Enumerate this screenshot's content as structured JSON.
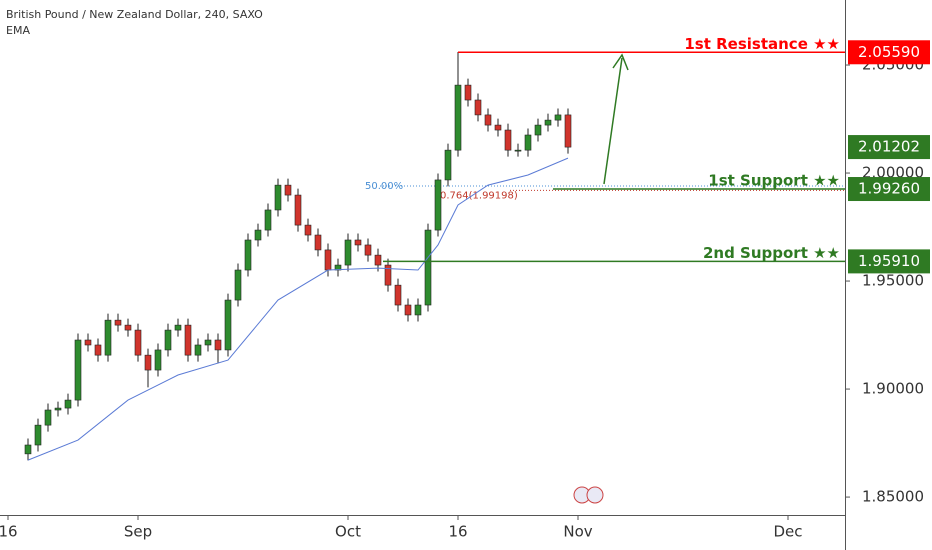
{
  "chart_data": {
    "type": "candlestick",
    "title": "British Pound / New Zealand Dollar, 240, SAXO",
    "indicator": "EMA",
    "x": [
      0,
      1,
      2,
      3,
      4,
      5,
      6,
      7,
      8,
      9,
      10,
      11,
      12,
      13,
      14,
      15,
      16,
      17,
      18,
      19,
      20,
      21,
      22,
      23,
      24,
      25,
      26,
      27,
      28,
      29,
      30,
      31,
      32,
      33,
      34,
      35,
      36,
      37,
      38,
      39,
      40,
      41,
      42,
      43,
      44,
      45,
      46,
      47,
      48,
      49,
      50,
      51,
      52,
      53,
      54
    ],
    "open": [
      1.87,
      1.8741,
      1.8833,
      1.8903,
      1.8912,
      1.8949,
      1.9227,
      1.9204,
      1.9157,
      1.9319,
      1.9296,
      1.9273,
      1.9157,
      1.9088,
      1.9181,
      1.9273,
      1.9296,
      1.9157,
      1.9204,
      1.9227,
      1.9181,
      1.9412,
      1.9551,
      1.969,
      1.9736,
      1.9829,
      1.9944,
      1.9898,
      1.9759,
      1.9713,
      1.9644,
      1.9551,
      1.9574,
      1.969,
      1.9667,
      1.962,
      1.9574,
      1.9481,
      1.9389,
      1.9343,
      1.9389,
      1.9736,
      1.9968,
      2.0106,
      2.0407,
      2.0338,
      2.0269,
      2.0222,
      2.0199,
      2.0106,
      2.0106,
      2.0176,
      2.0222,
      2.0245,
      2.0269
    ],
    "high": [
      1.8771,
      1.8863,
      1.8933,
      1.8942,
      1.8979,
      1.9257,
      1.9257,
      1.9234,
      1.9349,
      1.9349,
      1.9326,
      1.9303,
      1.9187,
      1.9211,
      1.9303,
      1.9326,
      1.9326,
      1.9234,
      1.9257,
      1.9257,
      1.9442,
      1.9581,
      1.972,
      1.9766,
      1.9859,
      1.9974,
      1.9974,
      1.9928,
      1.9789,
      1.9743,
      1.9674,
      1.9604,
      1.972,
      1.972,
      1.9697,
      1.965,
      1.9604,
      1.9511,
      1.9419,
      1.9419,
      1.9766,
      1.9998,
      2.0136,
      2.056,
      2.0437,
      2.0368,
      2.0299,
      2.0252,
      2.0229,
      2.0136,
      2.0206,
      2.0252,
      2.0275,
      2.0299,
      2.0299
    ],
    "low": [
      1.867,
      1.8711,
      1.8803,
      1.8873,
      1.8882,
      1.8919,
      1.9174,
      1.9127,
      1.9127,
      1.9266,
      1.9243,
      1.9127,
      1.9008,
      1.9058,
      1.9151,
      1.9243,
      1.9127,
      1.9127,
      1.9174,
      1.9121,
      1.9151,
      1.9382,
      1.9521,
      1.966,
      1.9706,
      1.9799,
      1.9868,
      1.9729,
      1.9683,
      1.9614,
      1.9521,
      1.9521,
      1.9544,
      1.9637,
      1.959,
      1.9544,
      1.9451,
      1.9359,
      1.9313,
      1.9313,
      1.9359,
      1.9706,
      1.9938,
      2.0076,
      2.0308,
      2.0239,
      2.0192,
      2.0169,
      2.0076,
      2.0076,
      2.0076,
      2.0146,
      2.0192,
      2.0215,
      2.009
    ],
    "close": [
      1.8741,
      1.8833,
      1.8903,
      1.8912,
      1.8949,
      1.9227,
      1.9204,
      1.9157,
      1.9319,
      1.9296,
      1.9273,
      1.9157,
      1.9088,
      1.9181,
      1.9273,
      1.9296,
      1.9157,
      1.9204,
      1.9227,
      1.9181,
      1.9412,
      1.9551,
      1.969,
      1.9736,
      1.9829,
      1.9944,
      1.9898,
      1.9759,
      1.9713,
      1.9644,
      1.9551,
      1.9574,
      1.969,
      1.9667,
      1.962,
      1.9574,
      1.9481,
      1.9389,
      1.9343,
      1.9389,
      1.9736,
      1.9968,
      2.0106,
      2.0407,
      2.0338,
      2.0269,
      2.0222,
      2.0199,
      2.0106,
      2.0106,
      2.0176,
      2.0222,
      2.0245,
      2.0269,
      2.012
    ],
    "up_color": "#2e8b2e",
    "down_color": "#d0342c",
    "ema": {
      "x": [
        0,
        5,
        10,
        15,
        20,
        25,
        30,
        35,
        39,
        41,
        43,
        46,
        50,
        54
      ],
      "values": [
        1.8671,
        1.8764,
        1.8949,
        1.9065,
        1.9134,
        1.9412,
        1.9551,
        1.956,
        1.9551,
        1.9667,
        1.9852,
        1.9944,
        1.9991,
        2.0069
      ],
      "color": "#5b7bd5"
    },
    "xlim": [
      -2.8,
      81.7
    ],
    "ylim": [
      1.8417,
      2.0801
    ],
    "xticks": [
      {
        "value": -2,
        "label": "16"
      },
      {
        "value": 11,
        "label": "Sep"
      },
      {
        "value": 32,
        "label": "Oct"
      },
      {
        "value": 43,
        "label": "16"
      },
      {
        "value": 55,
        "label": "Nov"
      },
      {
        "value": 76,
        "label": "Dec"
      }
    ],
    "yticks": [
      {
        "value": 1.85,
        "label": "1.85000"
      },
      {
        "value": 1.9,
        "label": "1.90000"
      },
      {
        "value": 1.95,
        "label": "1.95000"
      },
      {
        "value": 2.0,
        "label": "2.00000"
      },
      {
        "value": 2.05,
        "label": "2.05000"
      }
    ],
    "levels": [
      {
        "name": "1st Resistance ★★",
        "value": 2.0559,
        "label": "2.05590",
        "color": "#ff0000"
      },
      {
        "name": "1st Support ★★",
        "value": 1.9926,
        "label": "1.99260",
        "color": "#2f7a23"
      },
      {
        "name": "2nd Support ★★",
        "value": 1.9591,
        "label": "1.95910",
        "color": "#2f7a23"
      }
    ],
    "last_price": 2.01202,
    "last_price_color": "#2f7a23",
    "fib": [
      {
        "value": 1.994,
        "label": "50.00%",
        "color": "#4a8fd4"
      },
      {
        "value": 1.99198,
        "label": "0.764(1.99198)",
        "color": "#c0392b"
      }
    ]
  }
}
